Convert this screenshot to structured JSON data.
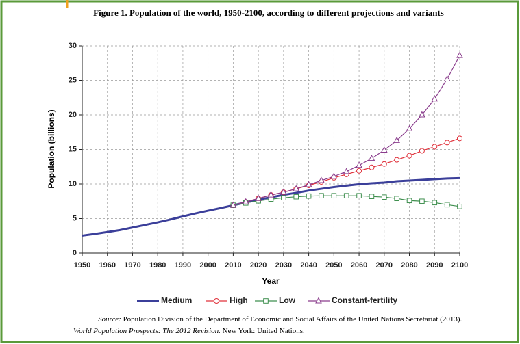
{
  "chart_data": {
    "type": "line",
    "title": "Figure 1.  Population of the world, 1950-2100, according to different projections and variants",
    "y_label": "Population (billions)",
    "x_label": "Year",
    "source_label": "Source:",
    "source_text": " Population Division of the Department of Economic and Social Affairs of the United Nations Secretariat (2013).",
    "citation_title": "World Population Prospects: The 2012 Revision.",
    "citation_text": " New York: United Nations.",
    "x": [
      1950,
      1955,
      1960,
      1965,
      1970,
      1975,
      1980,
      1985,
      1990,
      1995,
      2000,
      2005,
      2010,
      2015,
      2020,
      2025,
      2030,
      2035,
      2040,
      2045,
      2050,
      2055,
      2060,
      2065,
      2070,
      2075,
      2080,
      2085,
      2090,
      2095,
      2100
    ],
    "series": [
      {
        "name": "Medium",
        "color": "#3b3f9a",
        "values": [
          2.53,
          2.77,
          3.04,
          3.33,
          3.7,
          4.08,
          4.45,
          4.86,
          5.31,
          5.74,
          6.13,
          6.51,
          6.92,
          7.32,
          7.72,
          8.08,
          8.42,
          8.72,
          9.04,
          9.3,
          9.55,
          9.76,
          9.96,
          10.1,
          10.2,
          10.4,
          10.5,
          10.6,
          10.7,
          10.8,
          10.85
        ]
      },
      {
        "name": "High",
        "color": "#e0303a",
        "marker": "circle",
        "values": [
          null,
          null,
          null,
          null,
          null,
          null,
          null,
          null,
          null,
          null,
          null,
          null,
          6.92,
          7.4,
          7.9,
          8.4,
          8.8,
          9.3,
          9.8,
          10.3,
          10.9,
          11.4,
          11.9,
          12.4,
          12.9,
          13.5,
          14.1,
          14.8,
          15.4,
          16.0,
          16.6
        ]
      },
      {
        "name": "Low",
        "color": "#3f8f4f",
        "marker": "square",
        "values": [
          null,
          null,
          null,
          null,
          null,
          null,
          null,
          null,
          null,
          null,
          null,
          null,
          6.92,
          7.25,
          7.55,
          7.8,
          8.0,
          8.15,
          8.25,
          8.3,
          8.3,
          8.3,
          8.3,
          8.2,
          8.1,
          7.9,
          7.6,
          7.5,
          7.3,
          7.0,
          6.75
        ]
      },
      {
        "name": "Constant-fertility",
        "color": "#8a3c8c",
        "marker": "triangle",
        "values": [
          null,
          null,
          null,
          null,
          null,
          null,
          null,
          null,
          null,
          null,
          null,
          null,
          6.92,
          7.4,
          7.9,
          8.4,
          8.8,
          9.3,
          9.9,
          10.5,
          11.1,
          11.8,
          12.7,
          13.7,
          14.9,
          16.3,
          18.0,
          20.0,
          22.3,
          25.2,
          28.6
        ]
      }
    ],
    "xlim": [
      1950,
      2100
    ],
    "xticks": [
      1950,
      1960,
      1970,
      1980,
      1990,
      2000,
      2010,
      2020,
      2030,
      2040,
      2050,
      2060,
      2070,
      2080,
      2090,
      2100
    ],
    "ylim": [
      0,
      30
    ],
    "yticks": [
      0,
      5,
      10,
      15,
      20,
      25,
      30
    ],
    "grid": true,
    "legend": "bottom"
  }
}
